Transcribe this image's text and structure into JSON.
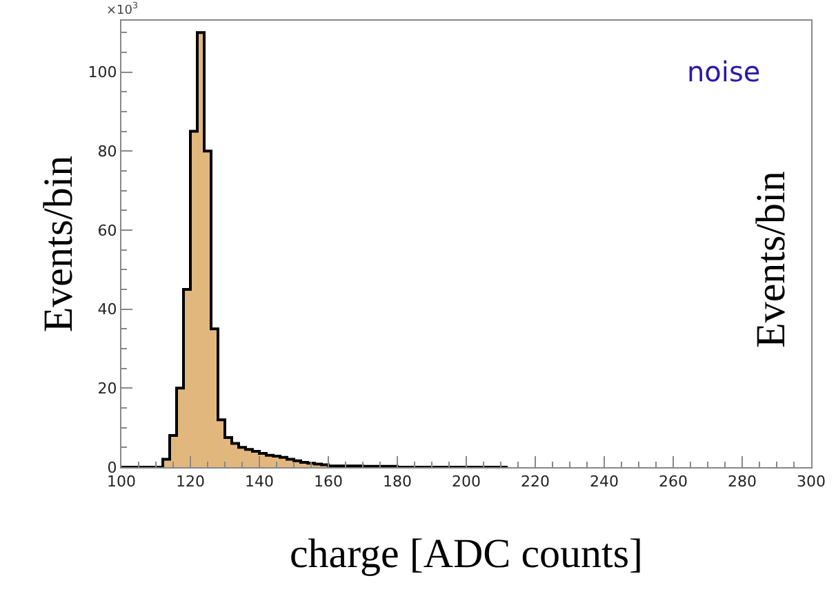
{
  "chart_data": {
    "type": "histogram",
    "xlabel": "charge [ADC counts]",
    "ylabel": "Events/bin",
    "annotations": [
      "noise",
      "×10$^{3}$",
      "Events/bin"
    ],
    "bins": [
      100,
      112,
      114,
      116,
      118,
      120,
      122,
      124,
      126,
      128,
      130,
      132,
      134,
      136,
      138,
      140,
      142,
      144,
      146,
      148,
      150,
      152,
      154,
      156,
      158,
      160,
      170,
      180,
      212
    ],
    "values": [
      0,
      2,
      8,
      20,
      45,
      85,
      110,
      80,
      35,
      12,
      7.5,
      6,
      5,
      4.5,
      4,
      3.5,
      3,
      2.8,
      2.5,
      2,
      1.6,
      1.2,
      1,
      0.8,
      0.6,
      0.3,
      0.2,
      0
    ],
    "color": "#e2b77e",
    "xlim": [
      100,
      300
    ],
    "xticks": [
      100,
      120,
      140,
      160,
      180,
      200,
      220,
      240,
      260,
      280,
      300
    ],
    "ylim": [
      0,
      113
    ],
    "yticks": [
      0,
      20,
      40,
      60,
      80,
      100
    ]
  }
}
